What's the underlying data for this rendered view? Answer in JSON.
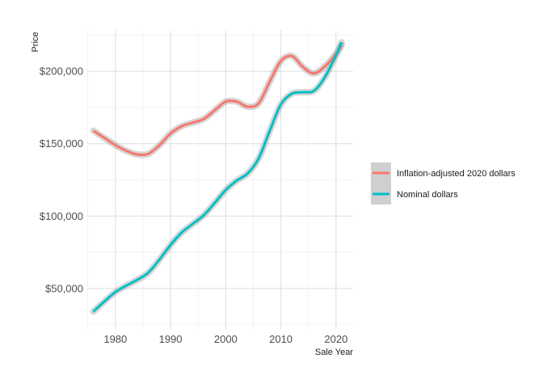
{
  "chart_data": {
    "type": "line",
    "title": "",
    "xlabel": "Sale Year",
    "ylabel": "Price",
    "xlim": [
      1974.9,
      2023.1
    ],
    "ylim": [
      22000,
      228000
    ],
    "x_ticks": [
      1980,
      1990,
      2000,
      2010,
      2020
    ],
    "x_tick_labels": [
      "1980",
      "1990",
      "2000",
      "2010",
      "2020"
    ],
    "y_ticks": [
      50000,
      100000,
      150000,
      200000
    ],
    "y_tick_labels": [
      "$50,000",
      "$100,000",
      "$150,000",
      "$200,000"
    ],
    "grid": true,
    "legend_position": "right",
    "confidence_band": true,
    "series": [
      {
        "name": "Inflation-adjusted 2020 dollars",
        "color": "#F8766D",
        "x": [
          1976,
          1978,
          1980,
          1982,
          1984,
          1986,
          1988,
          1990,
          1992,
          1994,
          1996,
          1998,
          2000,
          2002,
          2004,
          2006,
          2008,
          2010,
          2012,
          2014,
          2016,
          2018,
          2020,
          2021
        ],
        "y": [
          159000,
          154000,
          149000,
          145000,
          142500,
          143000,
          149000,
          157000,
          162000,
          164500,
          167000,
          173000,
          179000,
          179000,
          175500,
          178000,
          193000,
          207000,
          210500,
          203000,
          198500,
          203500,
          212000,
          218000
        ]
      },
      {
        "name": "Nominal dollars",
        "color": "#00BFC4",
        "x": [
          1976,
          1978,
          1980,
          1982,
          1984,
          1986,
          1988,
          1990,
          1992,
          1994,
          1996,
          1998,
          2000,
          2002,
          2004,
          2006,
          2008,
          2010,
          2012,
          2014,
          2016,
          2018,
          2020,
          2021
        ],
        "y": [
          34000,
          41000,
          47500,
          52000,
          56000,
          61000,
          70000,
          80000,
          88500,
          94500,
          100500,
          109000,
          118000,
          124500,
          129500,
          140000,
          159000,
          177000,
          184500,
          185500,
          186500,
          196000,
          211000,
          220000
        ]
      }
    ]
  }
}
